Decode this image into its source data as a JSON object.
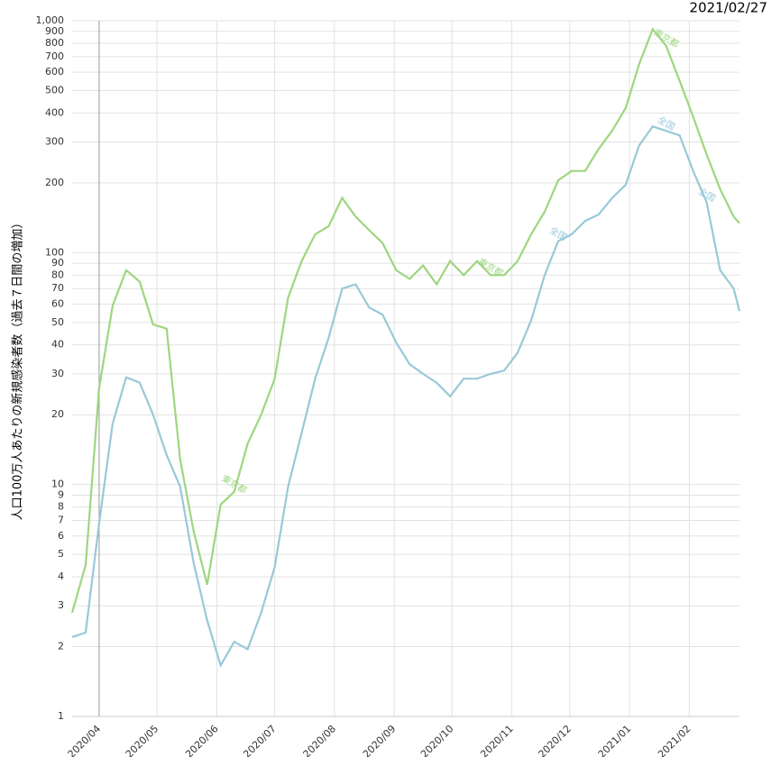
{
  "chart_data": {
    "type": "line",
    "date": "2021/02/27",
    "y_label": "人口100万人あたりの新規感染者数（過去７日間の増加）",
    "log_scale": true,
    "grid": true,
    "x": [
      0,
      7,
      14,
      21,
      28,
      35,
      42,
      49,
      56,
      63,
      70,
      77,
      84,
      91,
      98,
      105,
      112,
      119,
      126,
      133,
      140,
      147,
      154,
      161,
      168,
      175,
      182,
      189,
      196,
      203,
      210,
      217,
      224,
      231,
      238,
      245,
      252,
      259,
      266,
      273,
      280,
      287,
      294,
      301,
      308,
      315,
      322,
      329,
      336,
      343,
      346
    ],
    "xlim": [
      0,
      346
    ],
    "xticks": [
      {
        "value": 14,
        "label": "2020/04"
      },
      {
        "value": 44,
        "label": "2020/05"
      },
      {
        "value": 75,
        "label": "2020/06"
      },
      {
        "value": 105,
        "label": "2020/07"
      },
      {
        "value": 136,
        "label": "2020/08"
      },
      {
        "value": 167,
        "label": "2020/09"
      },
      {
        "value": 197,
        "label": "2020/10"
      },
      {
        "value": 228,
        "label": "2020/11"
      },
      {
        "value": 258,
        "label": "2020/12"
      },
      {
        "value": 289,
        "label": "2021/01"
      },
      {
        "value": 320,
        "label": "2021/02"
      }
    ],
    "ylim": [
      1,
      1000
    ],
    "yticks": [
      1,
      2,
      3,
      4,
      5,
      6,
      7,
      8,
      9,
      10,
      20,
      30,
      40,
      50,
      60,
      70,
      80,
      90,
      100,
      200,
      300,
      400,
      500,
      600,
      700,
      800,
      900,
      {
        "value": 1000,
        "label": "1,000"
      }
    ],
    "series": [
      {
        "name": "東京都",
        "color": "#9ed67f",
        "values": [
          2.8,
          4.5,
          26,
          59,
          84,
          75,
          49,
          47,
          12.8,
          6.3,
          3.7,
          8.2,
          9.3,
          15,
          20,
          28.6,
          64,
          92,
          120,
          130,
          172,
          143,
          125,
          110,
          84,
          77,
          88,
          73,
          92,
          80,
          92,
          80,
          80,
          92,
          120,
          150,
          205,
          225,
          225,
          280,
          335,
          420,
          650,
          920,
          780,
          550,
          385,
          265,
          188,
          143,
          134
        ]
      },
      {
        "name": "全国",
        "color": "#98c9d8",
        "values": [
          2.2,
          2.3,
          6.8,
          18.3,
          29,
          27.5,
          20,
          13.4,
          9.8,
          4.6,
          2.6,
          1.66,
          2.1,
          1.95,
          2.8,
          4.4,
          9.8,
          16.7,
          28.6,
          43,
          70,
          73,
          58,
          54,
          41,
          33,
          30,
          27.5,
          24,
          28.6,
          28.6,
          30,
          31,
          37,
          51,
          80,
          112,
          120,
          137,
          146,
          172,
          196,
          290,
          350,
          335,
          320,
          225,
          165,
          84,
          70,
          56
        ]
      }
    ]
  }
}
